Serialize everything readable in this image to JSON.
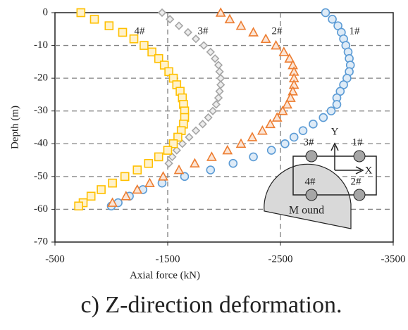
{
  "chart_data": {
    "type": "scatter",
    "xlabel": "Axial force (kN)",
    "ylabel": "Depth (m)",
    "caption": "c) Z-direction deformation.",
    "xlim": [
      -500,
      -3500
    ],
    "xticks": [
      -500,
      -1500,
      -2500,
      -3500
    ],
    "ylim": [
      -70,
      0
    ],
    "yticks": [
      0,
      -10,
      -20,
      -30,
      -40,
      -50,
      -60,
      -70
    ],
    "grid": true,
    "annotations": [
      "4#",
      "3#",
      "2#",
      "1#"
    ],
    "series": [
      {
        "name": "1#",
        "marker": "circle",
        "color": "#5b9bd5",
        "x": [
          -2900,
          -2960,
          -3010,
          -3040,
          -3060,
          -3080,
          -3100,
          -3110,
          -3120,
          -3110,
          -3090,
          -3060,
          -3030,
          -3000,
          -3000,
          -2950,
          -2880,
          -2790,
          -2700,
          -2620,
          -2540,
          -2420,
          -2260,
          -2080,
          -1880,
          -1650,
          -1450,
          -1280,
          -1160,
          -1060,
          -1000
        ],
        "values": [
          0,
          -2,
          -4,
          -6,
          -8,
          -10,
          -12,
          -14,
          -16,
          -18,
          -20,
          -22,
          -24,
          -26,
          -28,
          -30,
          -32,
          -34,
          -36,
          -38,
          -40,
          -42,
          -44,
          -46,
          -48,
          -50,
          -52,
          -54,
          -56,
          -58,
          -59
        ]
      },
      {
        "name": "2#",
        "marker": "triangle",
        "color": "#ed7d31",
        "x": [
          -1970,
          -2050,
          -2150,
          -2260,
          -2370,
          -2460,
          -2530,
          -2580,
          -2610,
          -2620,
          -2620,
          -2620,
          -2610,
          -2590,
          -2560,
          -2520,
          -2470,
          -2410,
          -2340,
          -2250,
          -2150,
          -2030,
          -1890,
          -1740,
          -1600,
          -1460,
          -1340,
          -1230,
          -1130,
          -1010
        ],
        "values": [
          0,
          -2,
          -4,
          -6,
          -8,
          -10,
          -12,
          -14,
          -16,
          -18,
          -20,
          -22,
          -24,
          -26,
          -28,
          -30,
          -32,
          -34,
          -36,
          -38,
          -40,
          -42,
          -44,
          -46,
          -48,
          -50,
          -52,
          -54,
          -56,
          -58
        ]
      },
      {
        "name": "3#",
        "marker": "diamond",
        "color": "#a5a5a5",
        "x": [
          -1450,
          -1520,
          -1600,
          -1680,
          -1750,
          -1820,
          -1880,
          -1920,
          -1950,
          -1960,
          -1970,
          -1970,
          -1960,
          -1950,
          -1930,
          -1900,
          -1860,
          -1810,
          -1750,
          -1690,
          -1630,
          -1580,
          -1540,
          -1510
        ],
        "values": [
          0,
          -2,
          -4,
          -6,
          -8,
          -10,
          -12,
          -14,
          -16,
          -18,
          -20,
          -22,
          -24,
          -26,
          -28,
          -30,
          -32,
          -34,
          -36,
          -38,
          -40,
          -42,
          -44,
          -46
        ]
      },
      {
        "name": "4#",
        "marker": "square",
        "color": "#ffc000",
        "x": [
          -730,
          -850,
          -980,
          -1100,
          -1200,
          -1290,
          -1360,
          -1420,
          -1470,
          -1510,
          -1550,
          -1580,
          -1610,
          -1630,
          -1640,
          -1650,
          -1650,
          -1640,
          -1620,
          -1590,
          -1550,
          -1500,
          -1420,
          -1330,
          -1230,
          -1120,
          -1010,
          -910,
          -820,
          -750,
          -710
        ],
        "values": [
          0,
          -2,
          -4,
          -6,
          -8,
          -10,
          -12,
          -14,
          -16,
          -18,
          -20,
          -22,
          -24,
          -26,
          -28,
          -30,
          -32,
          -34,
          -36,
          -38,
          -40,
          -42,
          -44,
          -46,
          -48,
          -50,
          -52,
          -54,
          -56,
          -58,
          -59
        ]
      }
    ],
    "inset": {
      "labels": [
        "3#",
        "1#",
        "4#",
        "2#"
      ],
      "y_axis": "Y",
      "x_axis": "X",
      "mound": "M ound"
    }
  }
}
